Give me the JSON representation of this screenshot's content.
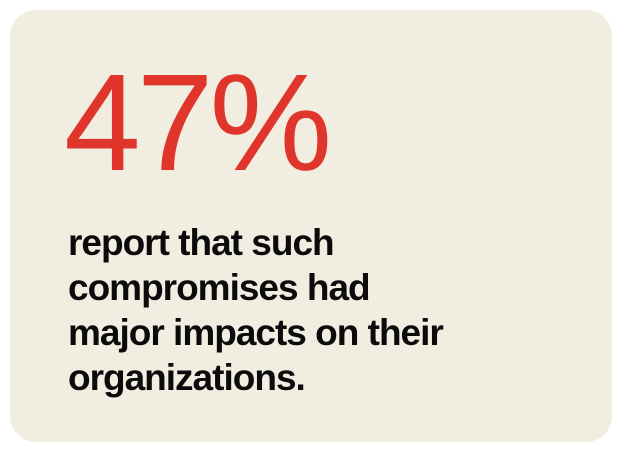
{
  "stat": {
    "value": "47%",
    "color": "#e0352b"
  },
  "caption": {
    "lines": [
      "report that such",
      "compromises had",
      "major impacts on their",
      "organizations."
    ]
  },
  "card": {
    "background": "#f1ede1"
  }
}
